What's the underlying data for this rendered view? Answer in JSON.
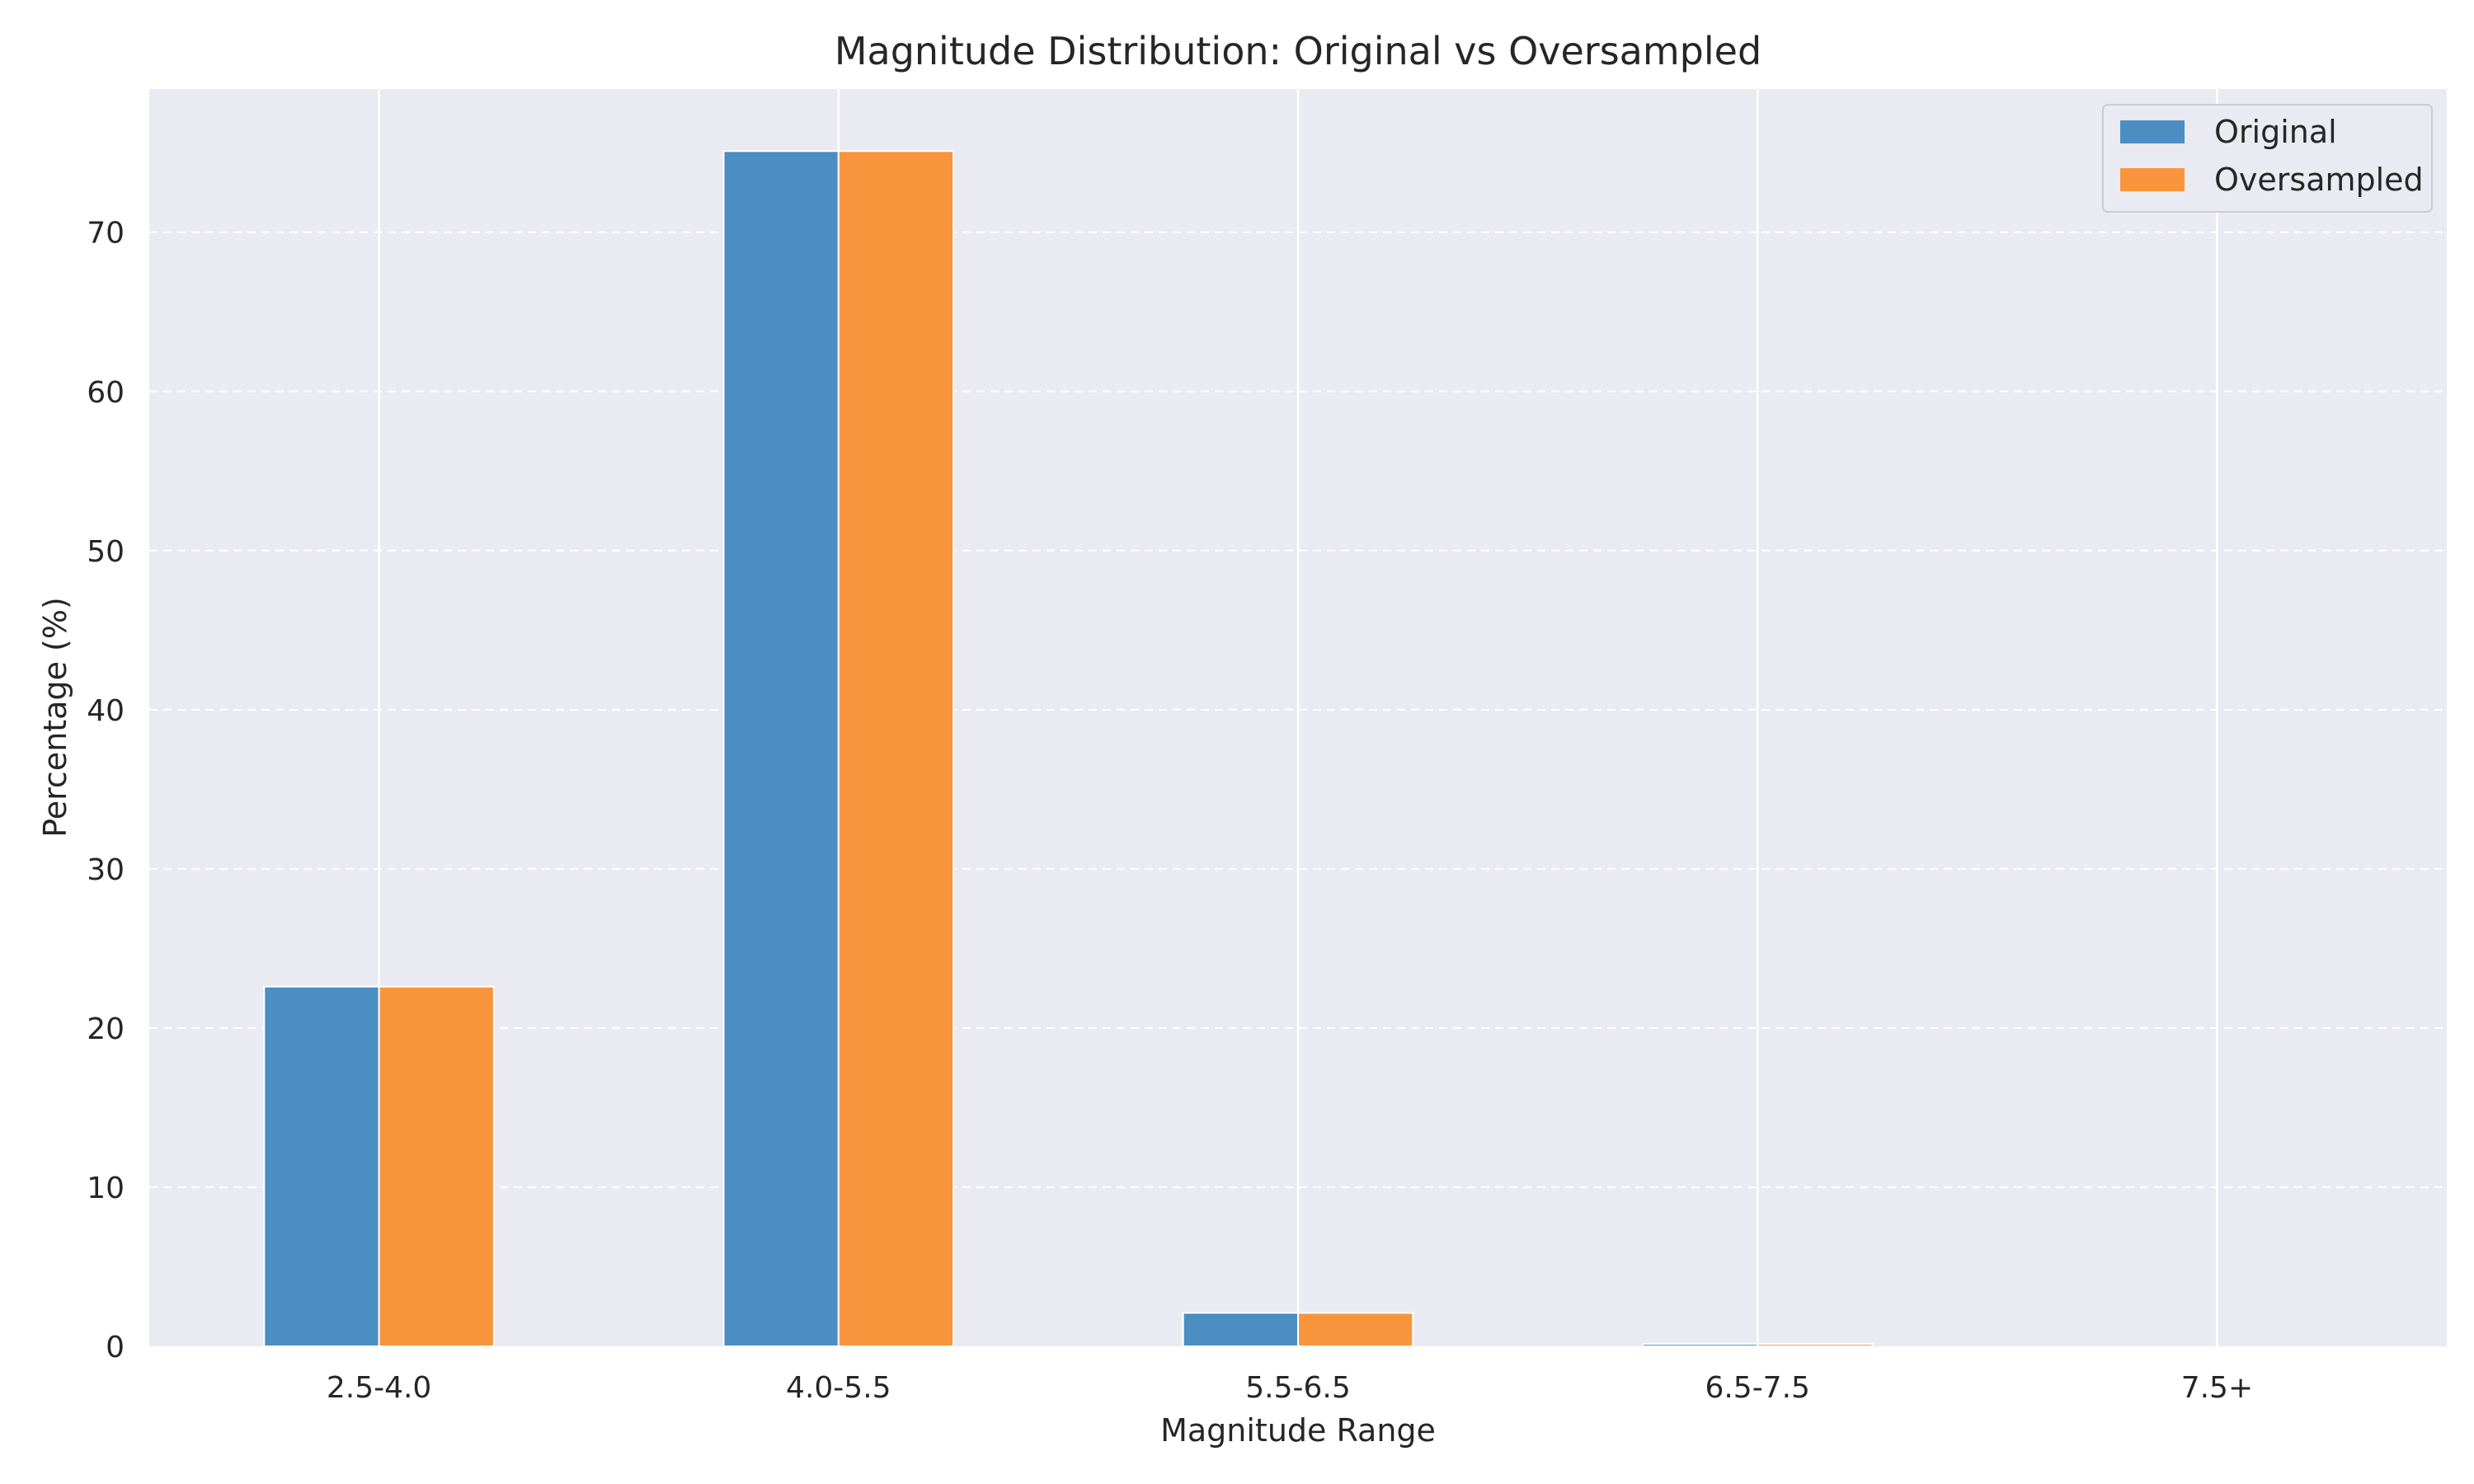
{
  "chart_data": {
    "type": "bar",
    "title": "Magnitude Distribution: Original vs Oversampled",
    "xlabel": "Magnitude Range",
    "ylabel": "Percentage (%)",
    "categories": [
      "2.5-4.0",
      "4.0-5.5",
      "5.5-6.5",
      "6.5-7.5",
      "7.5+"
    ],
    "series": [
      {
        "name": "Original",
        "values": [
          22.6,
          75.1,
          2.1,
          0.15,
          0.0
        ],
        "color": "#4a8ec2"
      },
      {
        "name": "Oversampled",
        "values": [
          22.6,
          75.1,
          2.1,
          0.15,
          0.0
        ],
        "color": "#f9953d"
      }
    ],
    "ylim": [
      0,
      79
    ],
    "yticks": [
      0,
      10,
      20,
      30,
      40,
      50,
      60,
      70
    ],
    "grid": {
      "x": true,
      "y": true,
      "y_style": "dashed"
    },
    "legend_position": "top-right",
    "background_color": "#eaeaf2"
  }
}
